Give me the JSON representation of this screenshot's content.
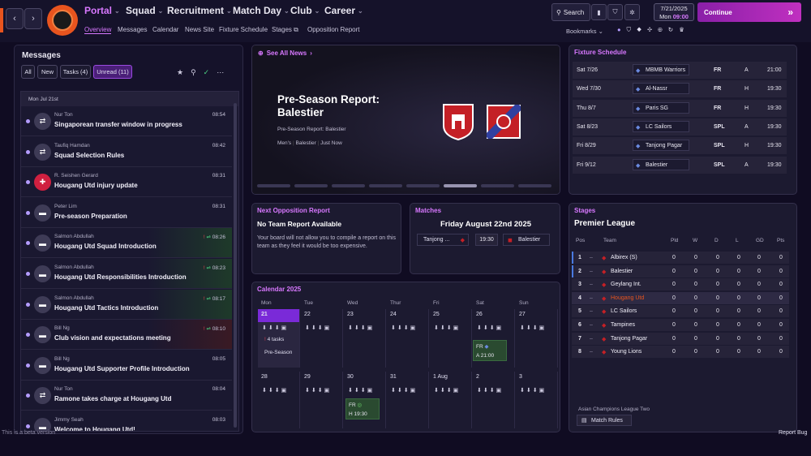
{
  "header": {
    "nav": [
      "Portal",
      "Squad",
      "Recruitment",
      "Match Day",
      "Club",
      "Career"
    ],
    "subnav": [
      "Overview",
      "Messages",
      "Calendar",
      "News Site",
      "Fixture Schedule",
      "Stages",
      "Opposition Report"
    ],
    "search": "Search",
    "date": "7/21/2025",
    "day": "Mon",
    "time": "09:00",
    "continue": "Continue",
    "bookmarks": "Bookmarks"
  },
  "messages": {
    "title": "Messages",
    "tabs": [
      "All",
      "New",
      "Tasks (4)",
      "Unread (11)"
    ],
    "date_header": "Mon Jul 21st",
    "items": [
      {
        "from": "Nur Ton",
        "subject": "Singaporean transfer window in progress",
        "time": "08:54",
        "icon": "transfer-icon"
      },
      {
        "from": "Taufiq Hamdan",
        "subject": "Squad Selection Rules",
        "time": "08:42",
        "icon": "transfer-icon"
      },
      {
        "from": "R. Seishen Gerard",
        "subject": "Hougang Utd injury update",
        "time": "08:31",
        "icon": "medical-icon"
      },
      {
        "from": "Peter Lim",
        "subject": "Pre-season Preparation",
        "time": "08:31",
        "icon": "board-icon"
      },
      {
        "from": "Salmon Abdullah",
        "subject": "Hougang Utd Squad Introduction",
        "time": "08:26",
        "icon": "board-icon",
        "flag": "!"
      },
      {
        "from": "Salmon Abdullah",
        "subject": "Hougang Utd Responsibilities Introduction",
        "time": "08:23",
        "icon": "board-icon",
        "flag": "!"
      },
      {
        "from": "Salmon Abdullah",
        "subject": "Hougang Utd Tactics Introduction",
        "time": "08:17",
        "icon": "board-icon",
        "flag": "!"
      },
      {
        "from": "Bill Ng",
        "subject": "Club vision and expectations meeting",
        "time": "08:10",
        "icon": "board-icon",
        "flag": "!"
      },
      {
        "from": "Bill Ng",
        "subject": "Hougang Utd Supporter Profile Introduction",
        "time": "08:05",
        "icon": "board-icon"
      },
      {
        "from": "Nur Ton",
        "subject": "Ramone takes charge at Hougang Utd",
        "time": "08:04",
        "icon": "transfer-icon"
      },
      {
        "from": "Jimmy Seah",
        "subject": "Welcome to Hougang Utd!",
        "time": "08:03",
        "icon": "board-icon"
      }
    ]
  },
  "news": {
    "see_all": "See All News",
    "headline": "Pre-Season Report: Balestier",
    "sub": "Pre-Season Report: Balestier",
    "tags": [
      "Men's",
      "Balestier",
      "Just Now"
    ]
  },
  "opposition": {
    "title": "Next Opposition Report",
    "heading": "No Team Report Available",
    "body": "Your board will not allow you to compile a report on this team as they feel it would be too expensive."
  },
  "matches": {
    "title": "Matches",
    "date": "Friday August 22nd 2025",
    "home": "Tanjong ...",
    "time": "19:30",
    "away": "Balestier"
  },
  "fixtures": {
    "title": "Fixture Schedule",
    "rows": [
      {
        "date": "Sat 7/26",
        "team": "MBMB Warriors",
        "comp": "FR",
        "venue": "A",
        "time": "21:00"
      },
      {
        "date": "Wed 7/30",
        "team": "Al-Nassr",
        "comp": "FR",
        "venue": "H",
        "time": "19:30"
      },
      {
        "date": "Thu 8/7",
        "team": "Paris SG",
        "comp": "FR",
        "venue": "H",
        "time": "19:30"
      },
      {
        "date": "Sat 8/23",
        "team": "LC Sailors",
        "comp": "SPL",
        "venue": "A",
        "time": "19:30"
      },
      {
        "date": "Fri 8/29",
        "team": "Tanjong Pagar",
        "comp": "SPL",
        "venue": "H",
        "time": "19:30"
      },
      {
        "date": "Fri 9/12",
        "team": "Balestier",
        "comp": "SPL",
        "venue": "A",
        "time": "19:30"
      }
    ]
  },
  "stages": {
    "title": "Stages",
    "league": "Premier League",
    "headers": [
      "Pos",
      "Team",
      "Pld",
      "W",
      "D",
      "L",
      "GD",
      "Pts"
    ],
    "rows": [
      {
        "pos": "1",
        "team": "Albirex (S)",
        "v": [
          "0",
          "0",
          "0",
          "0",
          "0",
          "0"
        ]
      },
      {
        "pos": "2",
        "team": "Balestier",
        "v": [
          "0",
          "0",
          "0",
          "0",
          "0",
          "0"
        ]
      },
      {
        "pos": "3",
        "team": "Geylang Int.",
        "v": [
          "0",
          "0",
          "0",
          "0",
          "0",
          "0"
        ]
      },
      {
        "pos": "4",
        "team": "Hougang Utd",
        "v": [
          "0",
          "0",
          "0",
          "0",
          "0",
          "0"
        ]
      },
      {
        "pos": "5",
        "team": "LC Sailors",
        "v": [
          "0",
          "0",
          "0",
          "0",
          "0",
          "0"
        ]
      },
      {
        "pos": "6",
        "team": "Tampines",
        "v": [
          "0",
          "0",
          "0",
          "0",
          "0",
          "0"
        ]
      },
      {
        "pos": "7",
        "team": "Tanjong Pagar",
        "v": [
          "0",
          "0",
          "0",
          "0",
          "0",
          "0"
        ]
      },
      {
        "pos": "8",
        "team": "Young Lions",
        "v": [
          "0",
          "0",
          "0",
          "0",
          "0",
          "0"
        ]
      }
    ],
    "other": "Asian Champions League Two",
    "rules": "Match Rules"
  },
  "calendar": {
    "title": "Calendar 2025",
    "days": [
      "Mon",
      "Tue",
      "Wed",
      "Thur",
      "Fri",
      "Sat",
      "Sun"
    ],
    "week1": [
      "21",
      "22",
      "23",
      "24",
      "25",
      "26",
      "27"
    ],
    "week2": [
      "28",
      "29",
      "30",
      "31",
      "1 Aug",
      "2",
      "3"
    ],
    "tasks": "4 tasks",
    "preseason": "Pre-Season",
    "m1": {
      "comp": "FR",
      "venue": "A",
      "time": "21:00"
    },
    "m2": {
      "comp": "FR",
      "venue": "H",
      "time": "19:30"
    }
  },
  "footer": {
    "beta": "This is a beta version",
    "report": "Report Bug"
  },
  "colors": {
    "accent": "#d878ff",
    "bg": "#100c22",
    "panel": "#1c1a30",
    "continue": "#b02ac8"
  }
}
